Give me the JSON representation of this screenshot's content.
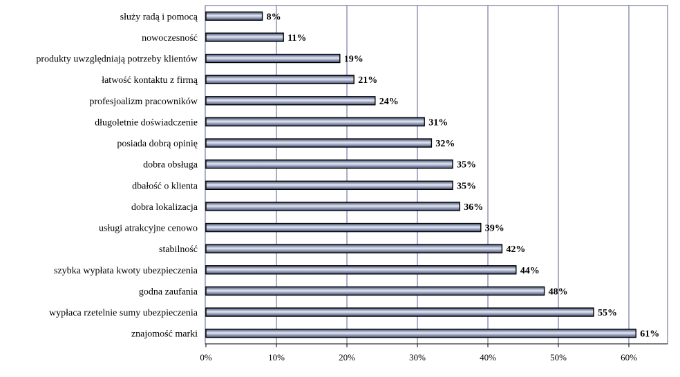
{
  "chart_data": {
    "type": "bar",
    "orientation": "horizontal",
    "title": "",
    "xlabel": "",
    "ylabel": "",
    "xlim": [
      0,
      66
    ],
    "grid": "vertical",
    "legend": "none",
    "categories": [
      "służy radą i pomocą",
      "nowoczesność",
      "produkty uwzględniają potrzeby klientów",
      "łatwość kontaktu z firmą",
      "profesjoalizm pracowników",
      "długoletnie doświadczenie",
      "posiada dobrą opinię",
      "dobra obsługa",
      "dbałość o klienta",
      "dobra lokalizacja",
      "usługi atrakcyjne cenowo",
      "stabilność",
      "szybka wypłata kwoty ubezpieczenia",
      "godna zaufania",
      "wypłaca rzetelnie sumy ubezpieczenia",
      "znajomość marki"
    ],
    "values": [
      8,
      11,
      19,
      21,
      24,
      31,
      32,
      35,
      35,
      36,
      39,
      42,
      44,
      48,
      55,
      61
    ],
    "value_labels": [
      "8%",
      "11%",
      "19%",
      "21%",
      "24%",
      "31%",
      "32%",
      "35%",
      "35%",
      "36%",
      "39%",
      "42%",
      "44%",
      "48%",
      "55%",
      "61%"
    ],
    "xticks": [
      0,
      10,
      20,
      30,
      40,
      50,
      60
    ],
    "xtick_labels": [
      "0%",
      "10%",
      "20%",
      "30%",
      "40%",
      "50%",
      "60%"
    ],
    "colors": {
      "bar_dark": "#3f4d78",
      "bar_light": "#e6e9f2",
      "bar_edge": "#000000",
      "grid": "#5a5e8c",
      "frame": "#5a5e8c"
    }
  }
}
